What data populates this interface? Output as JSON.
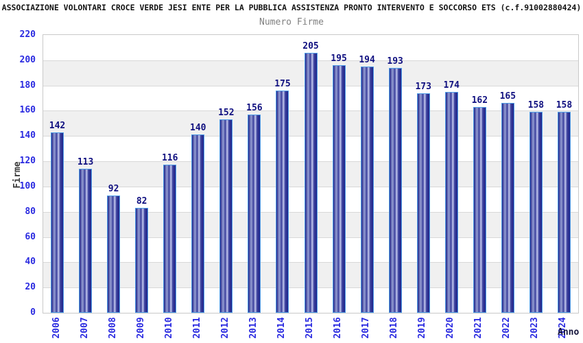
{
  "header": {
    "title": "ASSOCIAZIONE VOLONTARI CROCE VERDE JESI ENTE PER LA PUBBLICA ASSISTENZA PRONTO INTERVENTO E SOCCORSO ETS (c.f.91002880424)",
    "subtitle": "Numero Firme"
  },
  "chart_data": {
    "type": "bar",
    "title": "ASSOCIAZIONE VOLONTARI CROCE VERDE JESI ENTE PER LA PUBBLICA ASSISTENZA PRONTO INTERVENTO E SOCCORSO ETS (c.f.91002880424)",
    "subtitle": "Numero Firme",
    "categories": [
      "2006",
      "2007",
      "2008",
      "2009",
      "2010",
      "2011",
      "2012",
      "2013",
      "2014",
      "2015",
      "2016",
      "2017",
      "2018",
      "2019",
      "2020",
      "2021",
      "2022",
      "2023",
      "2024"
    ],
    "values": [
      142,
      113,
      92,
      82,
      116,
      140,
      152,
      156,
      175,
      205,
      195,
      194,
      193,
      173,
      174,
      162,
      165,
      158,
      158
    ],
    "xlabel": "Anno",
    "ylabel": "Firme",
    "ylim": [
      0,
      220
    ],
    "ytick_step": 20,
    "grid": true,
    "legend_position": "none",
    "colors": {
      "axis_text_blue": "#2a2ae0",
      "value_label": "#101080",
      "title_text": "#141414",
      "subtitle_text": "#808080",
      "band_gray": "#f0f0f0",
      "band_white": "#ffffff",
      "gridline": "#d8d8d8",
      "plot_border": "#c9c9c9",
      "bar_border": "#4f9ee8",
      "bar_dark": "#20258a",
      "bar_mid": "#3a3f9c",
      "bar_light": "#959dd2",
      "bar_lightest": "#c3c9ef"
    }
  }
}
